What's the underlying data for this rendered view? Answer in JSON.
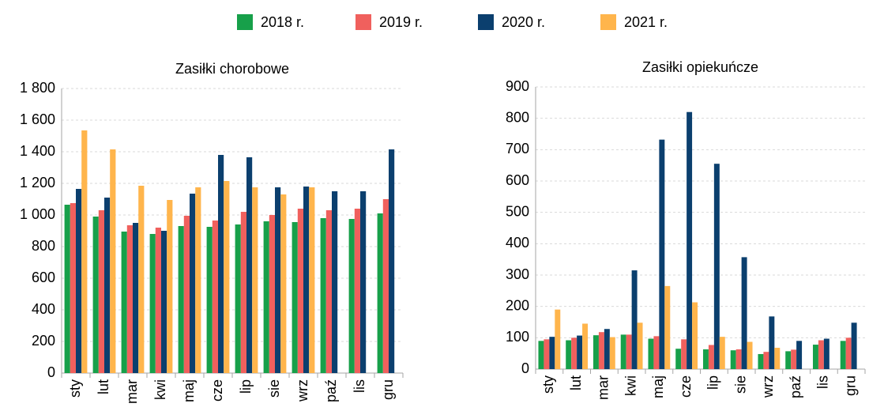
{
  "legend": [
    {
      "name": "2018 r.",
      "color": "#17a04a"
    },
    {
      "name": "2019 r.",
      "color": "#f0605d"
    },
    {
      "name": "2020 r.",
      "color": "#0b3f6e"
    },
    {
      "name": "2021 r.",
      "color": "#ffb54c"
    }
  ],
  "chart_data": [
    {
      "type": "bar",
      "title": "Zasiłki chorobowe",
      "categories": [
        "sty",
        "lut",
        "mar",
        "kwi",
        "maj",
        "cze",
        "lip",
        "sie",
        "wrz",
        "paź",
        "lis",
        "gru"
      ],
      "series": [
        {
          "values": [
            1065,
            990,
            895,
            880,
            930,
            925,
            940,
            960,
            955,
            980,
            975,
            1010
          ]
        },
        {
          "values": [
            1075,
            1030,
            935,
            920,
            995,
            965,
            1020,
            1000,
            1040,
            1030,
            1040,
            1100
          ]
        },
        {
          "values": [
            1165,
            1110,
            950,
            900,
            1135,
            1380,
            1365,
            1175,
            1180,
            1150,
            1150,
            1415
          ]
        },
        {
          "values": [
            1535,
            1415,
            1185,
            1095,
            1175,
            1215,
            1175,
            1130,
            1175,
            null,
            null,
            null
          ]
        }
      ],
      "ylim": [
        0,
        1800
      ],
      "yticks": [
        0,
        200,
        400,
        600,
        800,
        {
          "value": 1000,
          "label": "1 000"
        },
        {
          "value": 1200,
          "label": "1 200"
        },
        {
          "value": 1400,
          "label": "1 400"
        },
        {
          "value": 1600,
          "label": "1 600"
        },
        {
          "value": 1800,
          "label": "1 800"
        }
      ],
      "grid": true
    },
    {
      "type": "bar",
      "title": "Zasiłki opiekuńcze",
      "categories": [
        "sty",
        "lut",
        "mar",
        "kwi",
        "maj",
        "cze",
        "lip",
        "sie",
        "wrz",
        "paź",
        "lis",
        "gru"
      ],
      "series": [
        {
          "values": [
            90,
            92,
            108,
            110,
            97,
            65,
            63,
            60,
            48,
            57,
            78,
            90
          ]
        },
        {
          "values": [
            95,
            100,
            118,
            110,
            105,
            95,
            77,
            63,
            55,
            62,
            92,
            100
          ]
        },
        {
          "values": [
            103,
            107,
            128,
            315,
            732,
            820,
            655,
            357,
            168,
            90,
            97,
            148
          ]
        },
        {
          "values": [
            190,
            145,
            102,
            148,
            265,
            213,
            103,
            87,
            68,
            null,
            null,
            null
          ]
        }
      ],
      "ylim": [
        0,
        900
      ],
      "yticks": [
        0,
        100,
        200,
        300,
        400,
        500,
        600,
        700,
        800,
        900
      ],
      "grid": true
    }
  ]
}
